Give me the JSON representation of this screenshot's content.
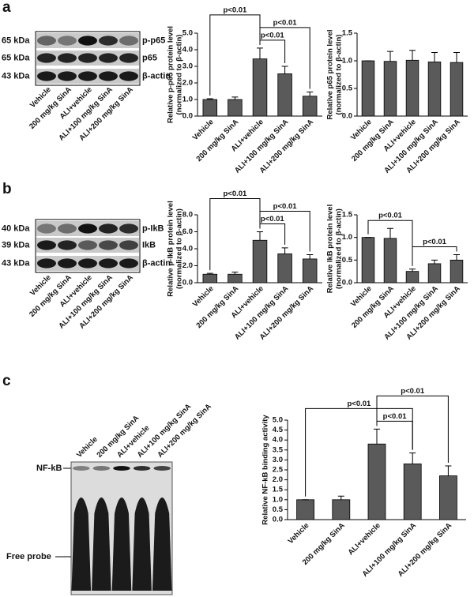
{
  "panel_labels": [
    "a",
    "b",
    "c"
  ],
  "blots": [
    {
      "rows": [
        {
          "size": "65 kDa",
          "name": "p-p65"
        },
        {
          "size": "65 kDa",
          "name": "p65"
        },
        {
          "size": "43 kDa",
          "name": "β-actin"
        }
      ],
      "lanes": [
        "Vehicle",
        "200 mg/kg SinA",
        "ALI+vehicle",
        "ALI+100 mg/kg SinA",
        "ALI+200 mg/kg SinA"
      ]
    },
    {
      "rows": [
        {
          "size": "40 kDa",
          "name": "p-IkB"
        },
        {
          "size": "39 kDa",
          "name": "IkB"
        },
        {
          "size": "43 kDa",
          "name": "β-actin"
        }
      ],
      "lanes": [
        "Vehicle",
        "200 mg/kg SinA",
        "ALI+vehicle",
        "ALI+100 mg/kg SinA",
        "ALI+200 mg/kg SinA"
      ]
    },
    {
      "rows": [
        {
          "name": "NF-kB"
        },
        {
          "name": "Free probe"
        }
      ],
      "lanes": [
        "Vehicle",
        "200 mg/kg SinA",
        "ALI+vehicle",
        "ALI+100 mg/kg SinA",
        "ALI+200 mg/kg SinA"
      ]
    }
  ],
  "chart_data": [
    {
      "type": "bar",
      "ylabel": [
        "Relative p-p65 protein level",
        "(normalized to β-actin)"
      ],
      "categories": [
        "Vehicle",
        "200 mg/kg SinA",
        "ALI+vehicle",
        "ALI+100 mg/kg SinA",
        "ALI+200 mg/kg SinA"
      ],
      "values": [
        1.0,
        1.0,
        3.45,
        2.55,
        1.2
      ],
      "errors": [
        0.05,
        0.15,
        0.65,
        0.45,
        0.25
      ],
      "color": "#5a5a5a",
      "ylim": [
        0,
        5
      ],
      "yticks": [
        {
          "value": 0,
          "label": "0.0"
        },
        {
          "value": 1,
          "label": "1.0"
        },
        {
          "value": 2,
          "label": "2.0"
        },
        {
          "value": 3,
          "label": "3.0"
        },
        {
          "value": 4,
          "label": "4.0"
        },
        {
          "value": 5,
          "label": "5.0"
        }
      ],
      "significance": [
        {
          "between": [
            "ALI+vehicle",
            "ALI+100 mg/kg SinA"
          ],
          "label": "p<0.01"
        },
        {
          "between": [
            "ALI+vehicle",
            "ALI+200 mg/kg SinA"
          ],
          "label": "p<0.01"
        },
        {
          "between": [
            "Vehicle",
            "ALI+vehicle"
          ],
          "label": "p<0.01"
        }
      ]
    },
    {
      "type": "bar",
      "ylabel": [
        "Relative p65 protein level",
        "(normalized to β-actin)"
      ],
      "categories": [
        "Vehicle",
        "200 mg/kg SinA",
        "ALI+vehicle",
        "ALI+100 mg/kg SinA",
        "ALI+200 mg/kg SinA"
      ],
      "values": [
        1.0,
        0.99,
        1.01,
        0.98,
        0.97
      ],
      "errors": [
        0,
        0.18,
        0.18,
        0.17,
        0.18
      ],
      "color": "#5a5a5a",
      "ylim": [
        0,
        1.5
      ],
      "yticks": [
        {
          "value": 0,
          "label": "0.0"
        },
        {
          "value": 0.5,
          "label": "0.5"
        },
        {
          "value": 1,
          "label": "1.0"
        },
        {
          "value": 1.5,
          "label": "1.5"
        }
      ],
      "significance": []
    },
    {
      "type": "bar",
      "ylabel": [
        "Relative p-IkB protein level",
        "(normalized to β-actin)"
      ],
      "categories": [
        "Vehicle",
        "200 mg/kg SinA",
        "ALI+vehicle",
        "ALI+100 mg/kg SinA",
        "ALI+200 mg/kg SinA"
      ],
      "values": [
        1.0,
        1.0,
        5.0,
        3.4,
        2.8
      ],
      "errors": [
        0.1,
        0.25,
        1.0,
        0.7,
        0.5
      ],
      "color": "#5a5a5a",
      "ylim": [
        0,
        8
      ],
      "yticks": [
        {
          "value": 0,
          "label": "0.0"
        },
        {
          "value": 2,
          "label": "2.0"
        },
        {
          "value": 4,
          "label": "4.0"
        },
        {
          "value": 6,
          "label": "6.0"
        },
        {
          "value": 8,
          "label": "8.0"
        }
      ],
      "significance": [
        {
          "between": [
            "ALI+vehicle",
            "ALI+100 mg/kg SinA"
          ],
          "label": "p<0.01"
        },
        {
          "between": [
            "ALI+vehicle",
            "ALI+200 mg/kg SinA"
          ],
          "label": "p<0.01"
        },
        {
          "between": [
            "Vehicle",
            "ALI+vehicle"
          ],
          "label": "p<0.01"
        }
      ]
    },
    {
      "type": "bar",
      "ylabel": [
        "Relative IkB protein level",
        "(normalized to β-actin)"
      ],
      "categories": [
        "Vehicle",
        "200 mg/kg SinA",
        "ALI+vehicle",
        "ALI+100 mg/kg SinA",
        "ALI+200 mg/kg SinA"
      ],
      "values": [
        1.0,
        0.98,
        0.25,
        0.42,
        0.5
      ],
      "errors": [
        0,
        0.22,
        0.05,
        0.08,
        0.12
      ],
      "color": "#5a5a5a",
      "ylim": [
        0,
        1.5
      ],
      "yticks": [
        {
          "value": 0,
          "label": "0.0"
        },
        {
          "value": 0.5,
          "label": "0.5"
        },
        {
          "value": 1,
          "label": "1.0"
        },
        {
          "value": 1.5,
          "label": "1.5"
        }
      ],
      "significance": [
        {
          "between": [
            "ALI+vehicle",
            "ALI+200 mg/kg SinA"
          ],
          "label": "p<0.01"
        },
        {
          "between": [
            "Vehicle",
            "ALI+vehicle"
          ],
          "label": "p<0.01"
        }
      ]
    },
    {
      "type": "bar",
      "ylabel": [
        "Relative NF-kB binding activity"
      ],
      "categories": [
        "Vehicle",
        "200 mg/kg SinA",
        "ALI+vehicle",
        "ALI+100 mg/kg SinA",
        "ALI+200 mg/kg SinA"
      ],
      "values": [
        1.0,
        1.0,
        3.8,
        2.8,
        2.2
      ],
      "errors": [
        0,
        0.18,
        0.75,
        0.55,
        0.5
      ],
      "color": "#5a5a5a",
      "ylim": [
        0,
        5
      ],
      "yticks": [
        {
          "value": 0,
          "label": "0.0"
        },
        {
          "value": 0.5,
          "label": "0.5"
        },
        {
          "value": 1,
          "label": "1.0"
        },
        {
          "value": 1.5,
          "label": "1.5"
        },
        {
          "value": 2,
          "label": "2.0"
        },
        {
          "value": 2.5,
          "label": "2.5"
        },
        {
          "value": 3,
          "label": "3.0"
        },
        {
          "value": 3.5,
          "label": "3.5"
        },
        {
          "value": 4,
          "label": "4.0"
        },
        {
          "value": 4.5,
          "label": "4.5"
        },
        {
          "value": 5,
          "label": "5.0"
        }
      ],
      "significance": [
        {
          "between": [
            "ALI+vehicle",
            "ALI+100 mg/kg SinA"
          ],
          "label": "p<0.01"
        },
        {
          "between": [
            "Vehicle",
            "ALI+100 mg/kg SinA"
          ],
          "label": "p<0.01"
        },
        {
          "between": [
            "ALI+vehicle",
            "ALI+200 mg/kg SinA"
          ],
          "label": "p<0.01"
        }
      ]
    }
  ]
}
